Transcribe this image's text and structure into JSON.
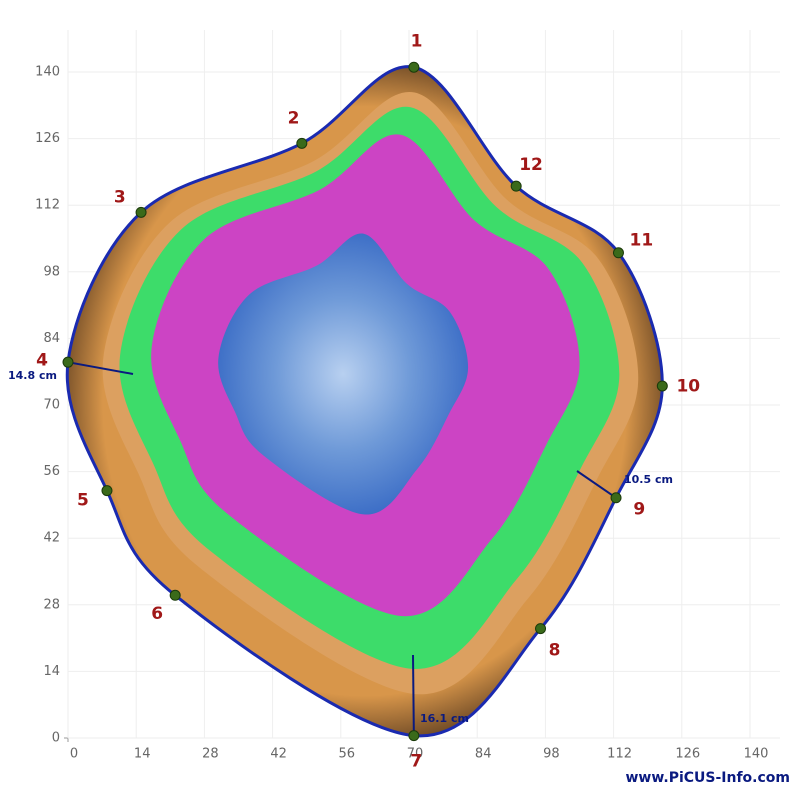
{
  "axis": {
    "xlim": [
      0,
      140
    ],
    "ylim": [
      0,
      140
    ],
    "xticks": [
      0,
      14,
      28,
      42,
      56,
      70,
      84,
      98,
      112,
      126,
      140
    ],
    "yticks": [
      0,
      14,
      28,
      42,
      56,
      70,
      84,
      98,
      112,
      126,
      140
    ]
  },
  "sensors": [
    {
      "label": "1",
      "x": 71,
      "y": 141
    },
    {
      "label": "2",
      "x": 48,
      "y": 125
    },
    {
      "label": "3",
      "x": 15,
      "y": 110.5
    },
    {
      "label": "4",
      "x": 0,
      "y": 79
    },
    {
      "label": "5",
      "x": 8,
      "y": 52
    },
    {
      "label": "6",
      "x": 22,
      "y": 30
    },
    {
      "label": "7",
      "x": 71,
      "y": 0.5
    },
    {
      "label": "8",
      "x": 97,
      "y": 23
    },
    {
      "label": "9",
      "x": 112.5,
      "y": 50.5
    },
    {
      "label": "10",
      "x": 122,
      "y": 74
    },
    {
      "label": "11",
      "x": 113,
      "y": 102
    },
    {
      "label": "12",
      "x": 92,
      "y": 116
    }
  ],
  "measurements": [
    {
      "label": "14.8 cm"
    },
    {
      "label": "10.5 cm"
    },
    {
      "label": "16.1 cm"
    }
  ],
  "footer": "www.PiCUS-Info.com"
}
